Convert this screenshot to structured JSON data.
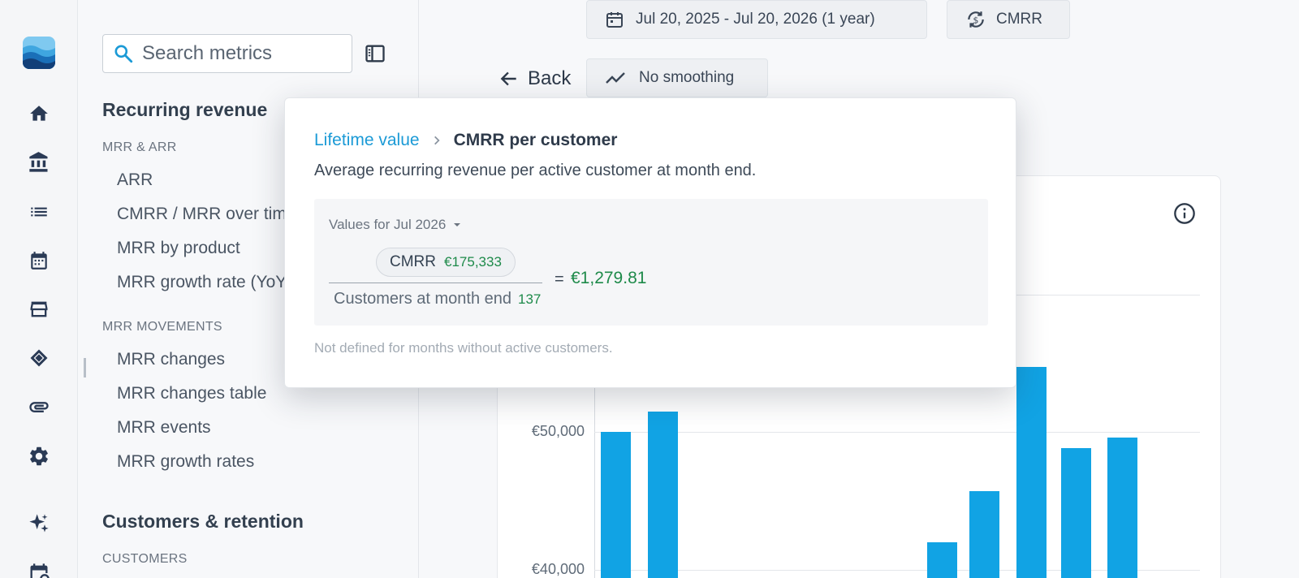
{
  "colors": {
    "accent": "#11a3e4",
    "positive": "#1e8a4a",
    "link": "#1b9ad6"
  },
  "search": {
    "placeholder": "Search metrics"
  },
  "sidebar": {
    "section1_title": "Recurring revenue",
    "group1_label": "MRR & ARR",
    "group1_items": [
      "ARR",
      "CMRR / MRR over time",
      "MRR by product",
      "MRR growth rate (YoY)"
    ],
    "group2_label": "MRR MOVEMENTS",
    "group2_items": [
      "MRR changes",
      "MRR changes table",
      "MRR events",
      "MRR growth rates"
    ],
    "section2_title": "Customers & retention",
    "group3_label": "CUSTOMERS"
  },
  "rail_icons": [
    "home-icon",
    "bank-icon",
    "list-icon",
    "calendar-icon",
    "store-icon",
    "handshake-icon",
    "paperclip-icon",
    "gear-icon",
    "sparkles-icon",
    "calendar-clock-icon"
  ],
  "toolbar": {
    "date_range": "Jul 20, 2025 - Jul 20, 2026 (1 year)",
    "metric_toggle": "CMRR",
    "back_label": "Back",
    "smoothing_label": "No smoothing"
  },
  "chart_data": {
    "type": "bar",
    "y_ticks": [
      "€50,000",
      "€40,000"
    ],
    "values": [
      50000,
      51500,
      42000,
      45700,
      54700,
      48800,
      49600
    ]
  },
  "popover": {
    "breadcrumb_parent": "Lifetime value",
    "breadcrumb_current": "CMRR per customer",
    "description": "Average recurring revenue per active customer at month end.",
    "values_for_label": "Values for Jul 2026",
    "numerator_label": "CMRR",
    "numerator_value": "€175,333",
    "denominator_label": "Customers at month end",
    "denominator_value": "137",
    "equals": "=",
    "result": "€1,279.81",
    "footnote": "Not defined for months without active customers."
  }
}
